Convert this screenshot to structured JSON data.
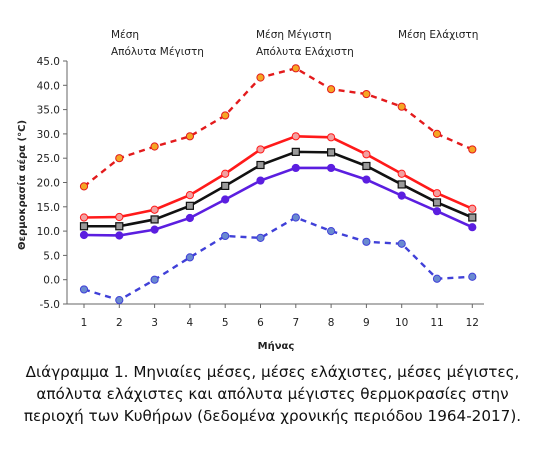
{
  "chart_data": {
    "type": "line",
    "title": "",
    "xlabel": "Μήνας",
    "ylabel": "Θερμοκρασία αέρα (°C)",
    "ylim": [
      -5,
      45
    ],
    "yticks": [
      "-5.0",
      "0.0",
      "5.0",
      "10.0",
      "15.0",
      "20.0",
      "25.0",
      "30.0",
      "35.0",
      "40.0",
      "45.0"
    ],
    "categories": [
      "1",
      "2",
      "3",
      "4",
      "5",
      "6",
      "7",
      "8",
      "9",
      "10",
      "11",
      "12"
    ],
    "legend_position": "top",
    "grid": false,
    "series": [
      {
        "name": "Απόλυτα Μέγιστη",
        "color": "#e31a1c",
        "marker_color": "#f5a623",
        "dash": true,
        "values": [
          19.2,
          25.0,
          27.4,
          29.5,
          33.8,
          41.6,
          43.5,
          39.2,
          38.2,
          35.6,
          30.0,
          26.8
        ]
      },
      {
        "name": "Μέση Μέγιστη",
        "color": "#ff1a1a",
        "marker_color": "#f2a0a0",
        "dash": false,
        "values": [
          12.8,
          12.9,
          14.4,
          17.4,
          21.8,
          26.8,
          29.5,
          29.3,
          25.8,
          21.8,
          17.8,
          14.6
        ]
      },
      {
        "name": "Μέση",
        "color": "#111111",
        "marker_color": "#9a9a9a",
        "dash": false,
        "values": [
          11.0,
          11.0,
          12.4,
          15.2,
          19.3,
          23.6,
          26.3,
          26.2,
          23.4,
          19.6,
          15.9,
          12.8
        ]
      },
      {
        "name": "Μέση Ελάχιστη",
        "color": "#5b1ee0",
        "marker_color": "#5b1ee0",
        "dash": false,
        "values": [
          9.2,
          9.1,
          10.3,
          12.7,
          16.5,
          20.4,
          23.0,
          23.0,
          20.6,
          17.3,
          14.1,
          10.8
        ]
      },
      {
        "name": "Απόλυτα Ελάχιστη",
        "color": "#4040d8",
        "marker_color": "#6a8ad0",
        "dash": true,
        "values": [
          -2.0,
          -4.2,
          0.0,
          4.6,
          9.0,
          8.6,
          12.8,
          10.0,
          7.8,
          7.4,
          0.2,
          0.6
        ]
      }
    ],
    "legend": [
      "Μέση",
      "Απόλυτα Μέγιστη",
      "Μέση Μέγιστη",
      "Απόλυτα Ελάχιστη",
      "Μέση Ελάχιστη"
    ]
  },
  "caption": "Διάγραμμα 1. Μηνιαίες μέσες, μέσες ελάχιστες, μέσες μέγιστες, απόλυτα ελάχιστες και απόλυτα μέγιστες θερμοκρασίες στην περιοχή των Κυθήρων (δεδομένα χρονικής περιόδου 1964-2017)."
}
